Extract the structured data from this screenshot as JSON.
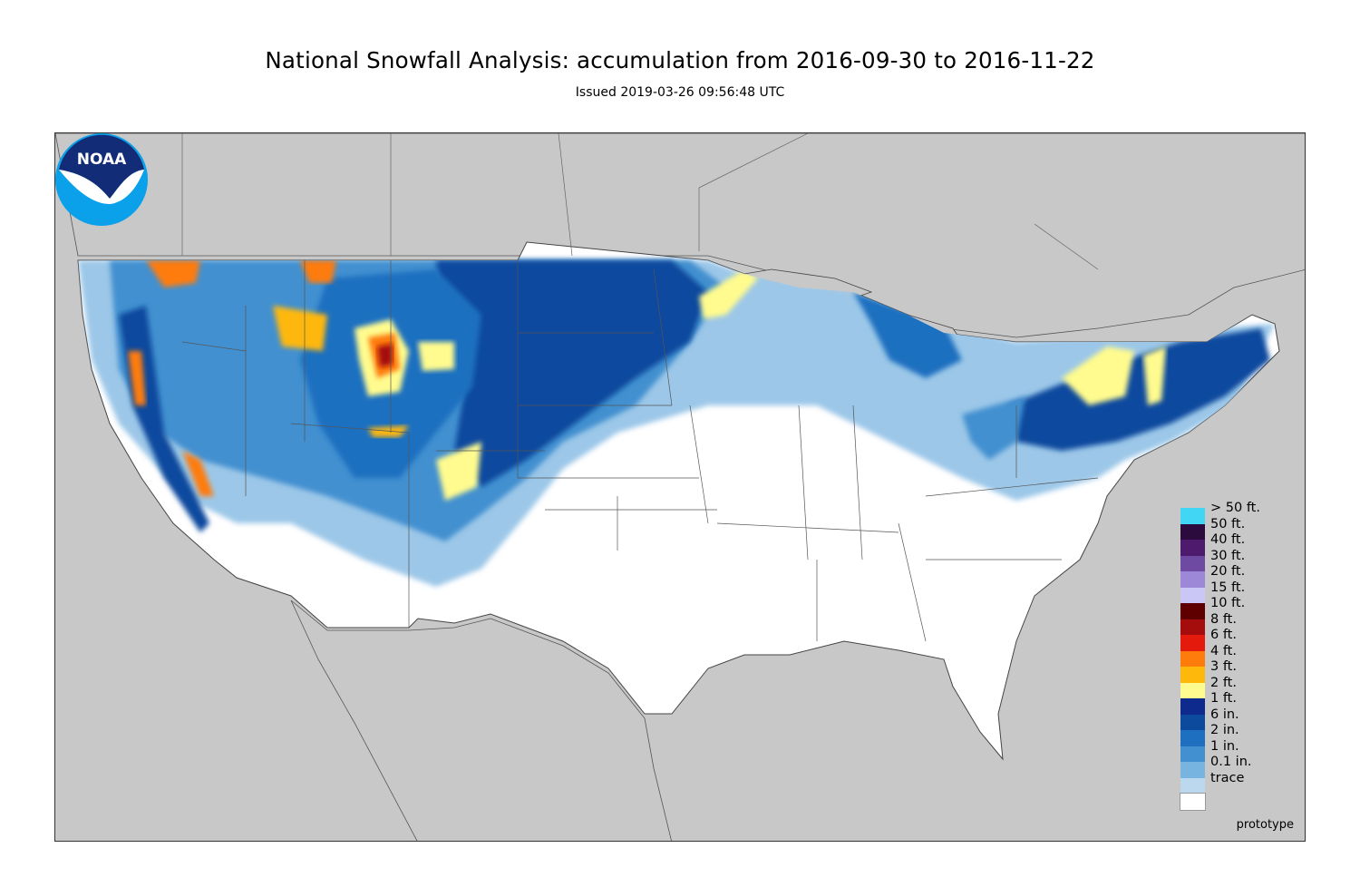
{
  "header": {
    "title": "National Snowfall Analysis: accumulation from 2016-09-30 to 2016-11-22",
    "issued": "Issued 2019-03-26 09:56:48 UTC"
  },
  "map": {
    "background_color": "#c8c8c8",
    "land_color": "#ffffff",
    "watermark": "prototype",
    "logo": {
      "name": "NOAA",
      "text": "NOAA"
    }
  },
  "legend": {
    "items": [
      {
        "label": "> 50 ft.",
        "color": "#41d7f4"
      },
      {
        "label": "50 ft.",
        "color": "#2b0a3d"
      },
      {
        "label": "40 ft.",
        "color": "#4d1a6e"
      },
      {
        "label": "30 ft.",
        "color": "#6e4aa3"
      },
      {
        "label": "20 ft.",
        "color": "#9c88d6"
      },
      {
        "label": "15 ft.",
        "color": "#cac6f5"
      },
      {
        "label": "10 ft.",
        "color": "#5e0000"
      },
      {
        "label": "8 ft.",
        "color": "#a50d0d"
      },
      {
        "label": "6 ft.",
        "color": "#e31a0c"
      },
      {
        "label": "4 ft.",
        "color": "#fe7c0c"
      },
      {
        "label": "3 ft.",
        "color": "#feb80b"
      },
      {
        "label": "2 ft.",
        "color": "#fffb8e"
      },
      {
        "label": "1 ft.",
        "color": "#0d2a8c"
      },
      {
        "label": "6 in.",
        "color": "#0c4a9e"
      },
      {
        "label": "2 in.",
        "color": "#1f6fc0"
      },
      {
        "label": "1 in.",
        "color": "#4290d0"
      },
      {
        "label": "0.1 in.",
        "color": "#78b4e0"
      },
      {
        "label": "trace",
        "color": "#bcd8ee"
      },
      {
        "label": "",
        "color": "#ffffff"
      }
    ]
  }
}
